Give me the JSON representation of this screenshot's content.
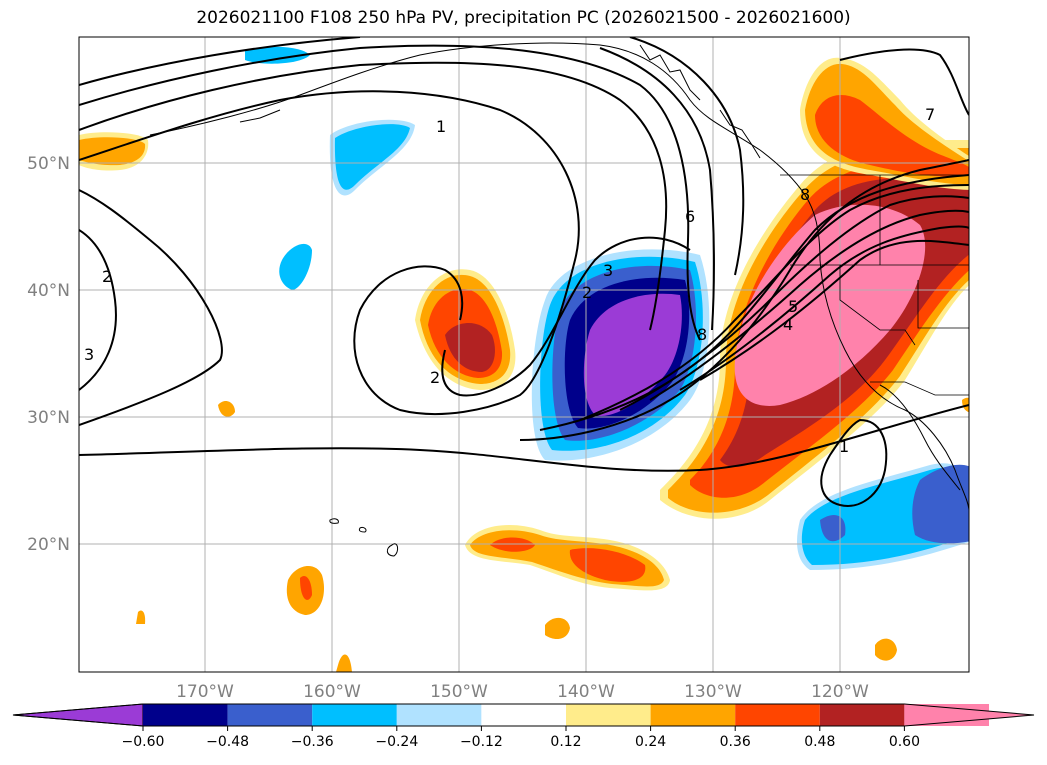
{
  "title": "2026021100 F108 250 hPa PV, precipitation PC (2026021500 - 2026021600)",
  "longitude_labels": [
    "170°W",
    "160°W",
    "150°W",
    "140°W",
    "130°W",
    "120°W"
  ],
  "latitude_labels": [
    "50°N",
    "40°N",
    "30°N",
    "20°N"
  ],
  "contour_labels": [
    "1",
    "2",
    "3",
    "4",
    "5",
    "6",
    "7",
    "8"
  ],
  "colorbar": {
    "ticks": [
      "−0.60",
      "−0.48",
      "−0.36",
      "−0.24",
      "−0.12",
      "0.12",
      "0.24",
      "0.36",
      "0.48",
      "0.60"
    ],
    "colors": [
      "#9b3bd6",
      "#00008b",
      "#3a5fcd",
      "#00bfff",
      "#b0e2ff",
      "#ffffff",
      "#ffec8b",
      "#ffa500",
      "#ff4500",
      "#b22222",
      "#ff82ab",
      "#ff82ab"
    ]
  },
  "colors": {
    "axis_label": "#808080",
    "contour": "#000000",
    "grid": "#b0b0b0"
  }
}
